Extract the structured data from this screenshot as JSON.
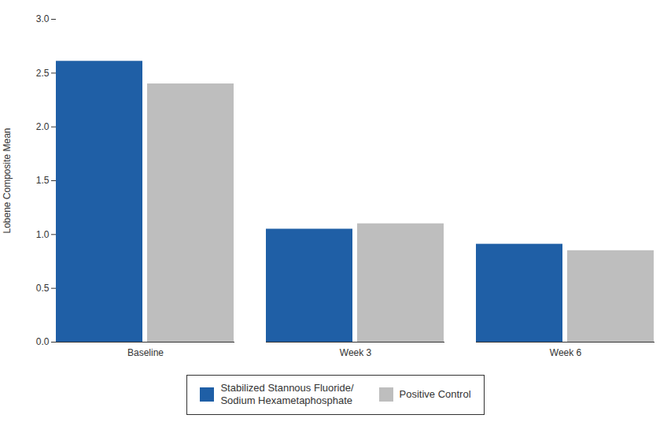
{
  "chart_data": {
    "type": "bar",
    "ylabel": "Lobene Composite Mean",
    "categories": [
      "Baseline",
      "Week 3",
      "Week 6"
    ],
    "series": [
      {
        "name": "Stabilized Stannous Fluoride/\nSodium Hexametaphosphate",
        "color": "#1F5FA6",
        "values": [
          2.61,
          1.05,
          0.91
        ]
      },
      {
        "name": "Positive Control",
        "color": "#BEBEBE",
        "values": [
          2.4,
          1.1,
          0.85
        ]
      }
    ],
    "ylim": [
      0.0,
      3.0
    ],
    "yticks": [
      {
        "value": 0,
        "label": "0.0"
      },
      0.5,
      {
        "value": 1,
        "label": "1.0"
      },
      1.5,
      {
        "value": 2,
        "label": "2.0"
      },
      2.5,
      {
        "value": 3,
        "label": "3.0"
      }
    ],
    "grid": false,
    "legend": "bottom"
  }
}
